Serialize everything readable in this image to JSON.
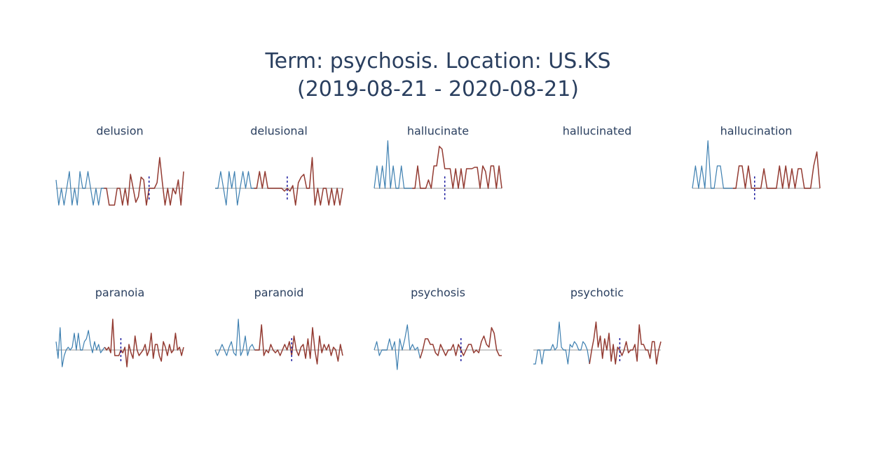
{
  "title": {
    "line1": "Term: psychosis. Location: US.KS",
    "line2": "(2019-08-21 - 2020-08-21)"
  },
  "colors": {
    "before": "#3d7fb0",
    "after": "#933b32",
    "baseline": "#cccccc",
    "marker": "#1f1fa0",
    "text": "#2a3f5f"
  },
  "chart_data": {
    "type": "line",
    "grid": false,
    "panels": [
      {
        "term": "delusion",
        "before": [
          0.3,
          -0.6,
          0,
          -0.6,
          0,
          0.6,
          -0.6,
          0,
          -0.6,
          0.6,
          0,
          0,
          0.6,
          0,
          -0.6,
          0,
          -0.6,
          0,
          0
        ],
        "after": [
          0,
          -0.6,
          -0.6,
          -0.6,
          0,
          0,
          -0.6,
          0,
          -0.6,
          0.5,
          0,
          -0.5,
          -0.3,
          0.4,
          0.3,
          -0.6,
          0,
          0,
          0,
          0.2,
          1.1,
          0.2,
          -0.6,
          0,
          -0.6,
          0,
          -0.2,
          0.3,
          -0.6,
          0.6
        ],
        "marker_index": 35
      },
      {
        "term": "delusional",
        "before": [
          0,
          0,
          0.6,
          0,
          -0.6,
          0.6,
          0,
          0.6,
          -0.6,
          0,
          0.6,
          0,
          0.6,
          0,
          0
        ],
        "after": [
          0,
          0.6,
          0,
          0.6,
          0,
          0,
          0,
          0,
          0,
          0,
          -0.1,
          0,
          -0.1,
          0.1,
          -0.6,
          0.2,
          0.4,
          0.5,
          0,
          0,
          1.1,
          -0.6,
          0,
          -0.6,
          0,
          0,
          -0.6,
          0,
          -0.6,
          0,
          -0.6,
          0
        ],
        "marker_index": 26
      },
      {
        "term": "hallucinate",
        "before": [
          0,
          0.8,
          0,
          0.8,
          0,
          1.7,
          0,
          0.8,
          0,
          0,
          0.8,
          0,
          0,
          0,
          0
        ],
        "after": [
          0,
          0.8,
          0,
          0,
          0,
          0.3,
          0,
          0.8,
          0.8,
          1.5,
          1.4,
          0.7,
          0.7,
          0.7,
          0,
          0.7,
          0,
          0.7,
          0,
          0.7,
          0.7,
          0.7,
          0.75,
          0.75,
          0,
          0.8,
          0.6,
          0,
          0.8,
          0.8,
          0,
          0.8,
          0
        ],
        "marker_index": 26
      },
      {
        "term": "hallucinated",
        "before": [],
        "after": [],
        "marker_index": null
      },
      {
        "term": "hallucination",
        "before": [
          0,
          0.8,
          0,
          0.8,
          0,
          1.7,
          0,
          0,
          0.8,
          0.8,
          0,
          0,
          0,
          0
        ],
        "after": [
          0,
          0.8,
          0.8,
          0,
          0.8,
          0,
          0,
          0,
          0,
          0.7,
          0,
          0,
          0,
          0,
          0.8,
          0,
          0.8,
          0,
          0.7,
          0,
          0.7,
          0.7,
          0,
          0,
          0,
          0.8,
          1.3,
          0
        ],
        "marker_index": 20
      },
      {
        "term": "paranoia",
        "before": [
          0.3,
          -0.3,
          0.8,
          -0.6,
          -0.2,
          0,
          0.1,
          0,
          0.1,
          0.6,
          0,
          0.6,
          0,
          0,
          0.3,
          0.4,
          0.7,
          0.2,
          -0.1,
          0.3,
          0,
          0.2,
          -0.1,
          0,
          0.1
        ],
        "after": [
          0,
          0.1,
          -0.1,
          1.1,
          -0.2,
          -0.2,
          -0.2,
          0,
          -0.1,
          0.1,
          -0.6,
          0.2,
          -0.1,
          -0.3,
          0.5,
          0,
          -0.2,
          -0.1,
          0,
          0.2,
          -0.2,
          0,
          0.6,
          -0.3,
          0.2,
          0.2,
          -0.2,
          -0.4,
          0.3,
          0.1,
          -0.2,
          0.2,
          -0.1,
          0,
          0.6,
          0,
          0.1,
          -0.2,
          0.1
        ],
        "marker_index": 32
      },
      {
        "term": "paranoid",
        "before": [
          0,
          -0.2,
          0,
          0.2,
          0,
          -0.2,
          0.1,
          0.3,
          -0.1,
          -0.2,
          1.1,
          -0.2,
          0,
          0.5,
          -0.2,
          0.1,
          0.2,
          0
        ],
        "after": [
          0,
          0,
          0.9,
          -0.2,
          0,
          -0.1,
          0.2,
          0,
          -0.1,
          0,
          -0.2,
          0,
          0.2,
          0,
          0.3,
          -0.2,
          0.5,
          0,
          -0.2,
          0.1,
          0.2,
          -0.3,
          0.4,
          -0.3,
          0.8,
          0,
          -0.5,
          0.5,
          -0.1,
          0.2,
          0,
          0.2,
          -0.2,
          0.1,
          0,
          -0.4,
          0.2,
          -0.2
        ],
        "marker_index": 33
      },
      {
        "term": "psychosis",
        "before": [
          0,
          0.3,
          -0.2,
          0,
          0,
          0,
          0.4,
          0,
          0.3,
          -0.7,
          0.4,
          0,
          0.4,
          0.9,
          0,
          0.2,
          0,
          0.1,
          -0.3
        ],
        "after": [
          0,
          0.4,
          0.4,
          0.2,
          0.2,
          -0.1,
          -0.2,
          0.2,
          0,
          -0.2,
          0,
          0,
          0.2,
          -0.2,
          0.2,
          0,
          -0.2,
          0,
          0.2,
          0.2,
          -0.1,
          0,
          -0.1,
          0.3,
          0.5,
          0.2,
          0.1,
          0.8,
          0.6,
          0,
          -0.2,
          -0.2
        ],
        "marker_index": 34
      },
      {
        "term": "psychotic",
        "before": [
          -0.5,
          -0.5,
          0,
          0,
          -0.5,
          0,
          0,
          0,
          0,
          0.2,
          0,
          0.1,
          1,
          0.1,
          0,
          0,
          -0.5,
          0.2,
          0.1,
          0.3,
          0.2,
          0,
          0,
          0.3,
          0.2,
          0,
          -0.5
        ],
        "after": [
          0,
          0.4,
          1,
          0.1,
          0.5,
          -0.3,
          0.4,
          0,
          0.6,
          -0.4,
          0.2,
          -0.5,
          0.1,
          0,
          -0.2,
          0,
          0.3,
          -0.1,
          0,
          0,
          0.2,
          -0.4,
          0.9,
          0.2,
          0.2,
          0,
          0,
          -0.3,
          0.3,
          0.3,
          -0.5,
          0,
          0.3
        ],
        "marker_index": 40
      }
    ]
  }
}
